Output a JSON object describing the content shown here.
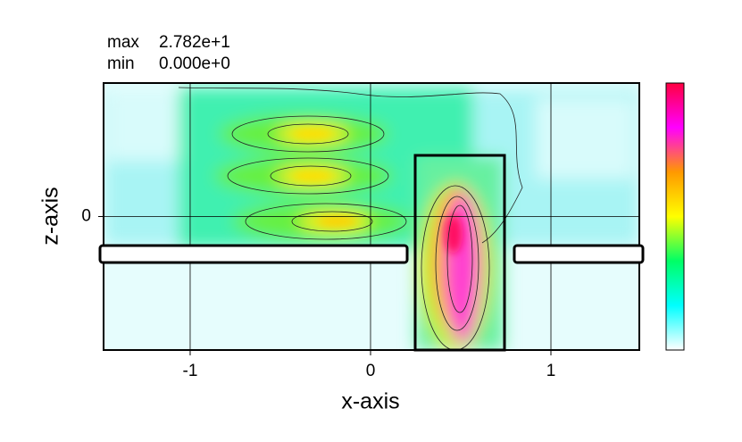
{
  "chart_data": {
    "type": "contour",
    "annotations": [
      {
        "label": "max",
        "value": 27.82,
        "value_label": "2.782e+1"
      },
      {
        "label": "min",
        "value": 0,
        "value_label": "0.000e+0"
      }
    ],
    "xlabel": "x-axis",
    "ylabel": "z-axis",
    "xlim": [
      -1.48,
      1.49
    ],
    "ylim": [
      -0.74,
      0.74
    ],
    "xticks": [
      -1,
      0,
      1
    ],
    "yticks": [
      0
    ],
    "grid": true,
    "colormap": [
      "#ffffff",
      "#00ffff",
      "#00ff66",
      "#ffff00",
      "#ff9900",
      "#ff00ff",
      "#ff0040"
    ]
  }
}
